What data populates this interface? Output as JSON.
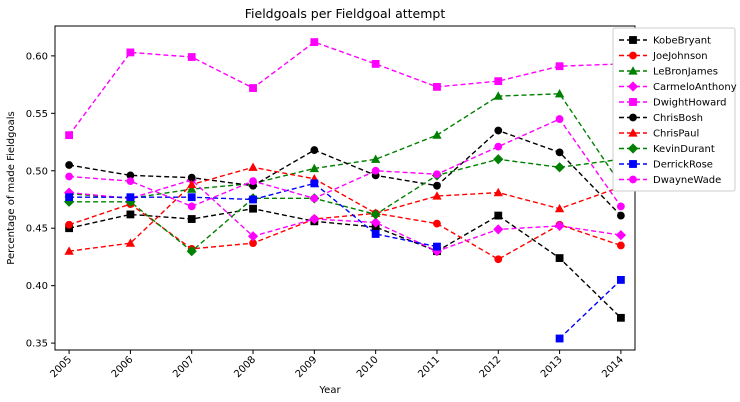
{
  "chart_data": {
    "type": "line",
    "title": "Fieldgoals per Fieldgoal attempt",
    "xlabel": "Year",
    "ylabel": "Percentage of made Fieldgoals",
    "x": [
      "2005",
      "2006",
      "2007",
      "2008",
      "2009",
      "2010",
      "2011",
      "2012",
      "2013",
      "2014"
    ],
    "xlim": [
      2004.77,
      2014.23
    ],
    "ylim": [
      0.344,
      0.626
    ],
    "yticks": [
      "0.35",
      "0.40",
      "0.45",
      "0.50",
      "0.55",
      "0.60"
    ],
    "grid": false,
    "legend_position": "outside-right",
    "series": [
      {
        "name": "KobeBryant",
        "color": "#000000",
        "marker": "square",
        "values": [
          0.45,
          0.462,
          0.458,
          0.467,
          0.456,
          0.451,
          0.43,
          0.461,
          0.424,
          0.372
        ]
      },
      {
        "name": "JoeJohnson",
        "color": "#ff0000",
        "marker": "circle",
        "values": [
          0.453,
          0.471,
          0.432,
          0.437,
          0.458,
          0.463,
          0.454,
          0.423,
          0.453,
          0.435
        ]
      },
      {
        "name": "LeBronJames",
        "color": "#008000",
        "marker": "triangle",
        "values": [
          0.48,
          0.476,
          0.484,
          0.489,
          0.502,
          0.51,
          0.531,
          0.565,
          0.567,
          0.488
        ]
      },
      {
        "name": "CarmeloAnthony",
        "color": "#ff00ff",
        "marker": "diamond",
        "values": [
          0.481,
          0.476,
          0.492,
          0.443,
          0.458,
          0.455,
          0.43,
          0.449,
          0.452,
          0.444
        ]
      },
      {
        "name": "DwightHoward",
        "color": "#ff00ff",
        "marker": "square",
        "values": [
          0.531,
          0.603,
          0.599,
          0.572,
          0.612,
          0.593,
          0.573,
          0.578,
          0.591,
          0.593
        ]
      },
      {
        "name": "ChrisBosh",
        "color": "#000000",
        "marker": "circle",
        "values": [
          0.505,
          0.496,
          0.494,
          0.487,
          0.518,
          0.496,
          0.487,
          0.535,
          0.516,
          0.461
        ]
      },
      {
        "name": "ChrisPaul",
        "color": "#ff0000",
        "marker": "triangle",
        "values": [
          0.43,
          0.437,
          0.488,
          0.503,
          0.493,
          0.463,
          0.478,
          0.481,
          0.467,
          0.486
        ]
      },
      {
        "name": "KevinDurant",
        "color": "#008000",
        "marker": "diamond",
        "values": [
          0.473,
          0.473,
          0.43,
          0.476,
          0.476,
          0.462,
          0.496,
          0.51,
          0.503,
          0.51
        ]
      },
      {
        "name": "DerrickRose",
        "color": "#0000ff",
        "marker": "square",
        "values": [
          0.477,
          0.477,
          0.477,
          0.475,
          0.489,
          0.445,
          0.434,
          null,
          0.354,
          0.405
        ]
      },
      {
        "name": "DwayneWade",
        "color": "#ff00ff",
        "marker": "circle",
        "values": [
          0.495,
          0.491,
          0.469,
          0.491,
          0.476,
          0.5,
          0.497,
          0.521,
          0.545,
          0.469
        ]
      }
    ]
  }
}
